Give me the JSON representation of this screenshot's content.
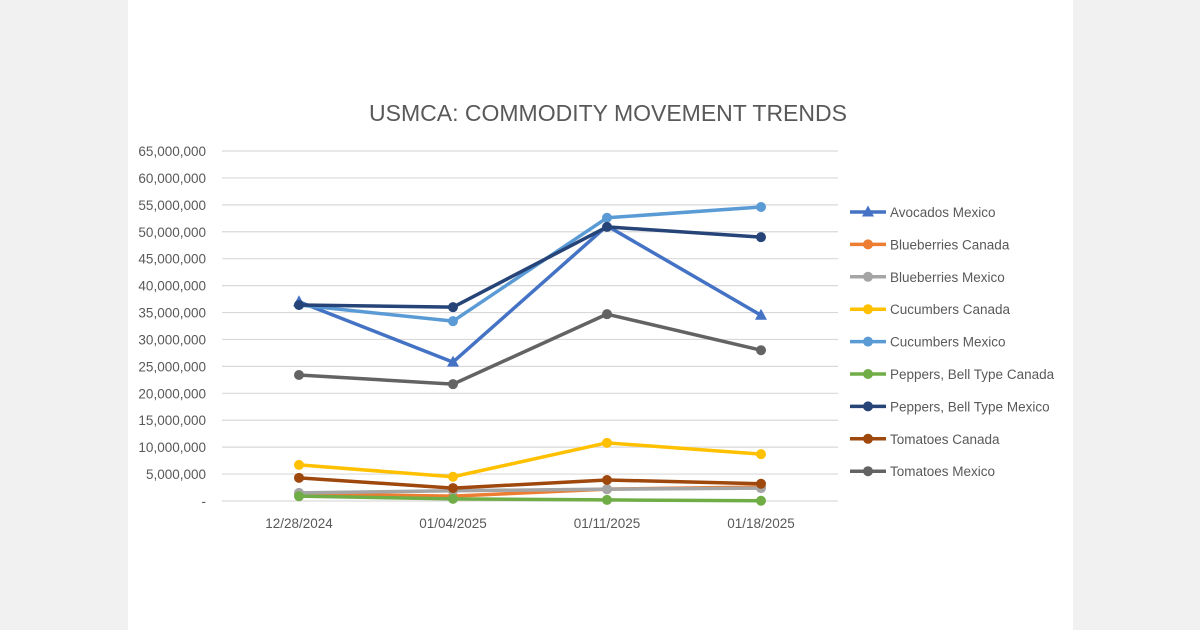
{
  "chart_data": {
    "type": "line",
    "title": "USMCA: COMMODITY MOVEMENT TRENDS",
    "xlabel": "",
    "ylabel": "",
    "categories": [
      "12/28/2024",
      "01/04/2025",
      "01/11/2025",
      "01/18/2025"
    ],
    "ylim": [
      0,
      65000000
    ],
    "yticks": [
      0,
      5000000,
      10000000,
      15000000,
      20000000,
      25000000,
      30000000,
      35000000,
      40000000,
      45000000,
      50000000,
      55000000,
      60000000,
      65000000
    ],
    "ytick_labels": [
      "-",
      "5,000,000",
      "10,000,000",
      "15,000,000",
      "20,000,000",
      "25,000,000",
      "30,000,000",
      "35,000,000",
      "40,000,000",
      "45,000,000",
      "50,000,000",
      "55,000,000",
      "60,000,000",
      "65,000,000"
    ],
    "grid": "horizontal",
    "legend_position": "right",
    "series": [
      {
        "name": "Avocados Mexico",
        "color": "#4472c4",
        "marker": "triangle",
        "values": [
          37000000,
          25800000,
          51100000,
          34500000
        ]
      },
      {
        "name": "Blueberries Canada",
        "color": "#ed7d31",
        "marker": "circle",
        "values": [
          1300000,
          900000,
          2200000,
          2600000
        ]
      },
      {
        "name": "Blueberries Mexico",
        "color": "#a5a5a5",
        "marker": "circle",
        "values": [
          1500000,
          1900000,
          2200000,
          2400000
        ]
      },
      {
        "name": "Cucumbers Canada",
        "color": "#ffc000",
        "marker": "circle",
        "values": [
          6700000,
          4500000,
          10800000,
          8700000
        ]
      },
      {
        "name": "Cucumbers Mexico",
        "color": "#5b9bd5",
        "marker": "circle",
        "values": [
          36400000,
          33400000,
          52600000,
          54600000
        ]
      },
      {
        "name": "Peppers, Bell Type Canada",
        "color": "#70ad47",
        "marker": "circle",
        "values": [
          900000,
          400000,
          200000,
          50000
        ]
      },
      {
        "name": "Peppers, Bell Type Mexico",
        "color": "#264478",
        "marker": "circle",
        "values": [
          36400000,
          36000000,
          50900000,
          49000000
        ]
      },
      {
        "name": "Tomatoes Canada",
        "color": "#9e480e",
        "marker": "circle",
        "values": [
          4300000,
          2400000,
          3900000,
          3200000
        ]
      },
      {
        "name": "Tomatoes Mexico",
        "color": "#636363",
        "marker": "circle",
        "values": [
          23400000,
          21700000,
          34700000,
          28000000
        ]
      }
    ]
  }
}
